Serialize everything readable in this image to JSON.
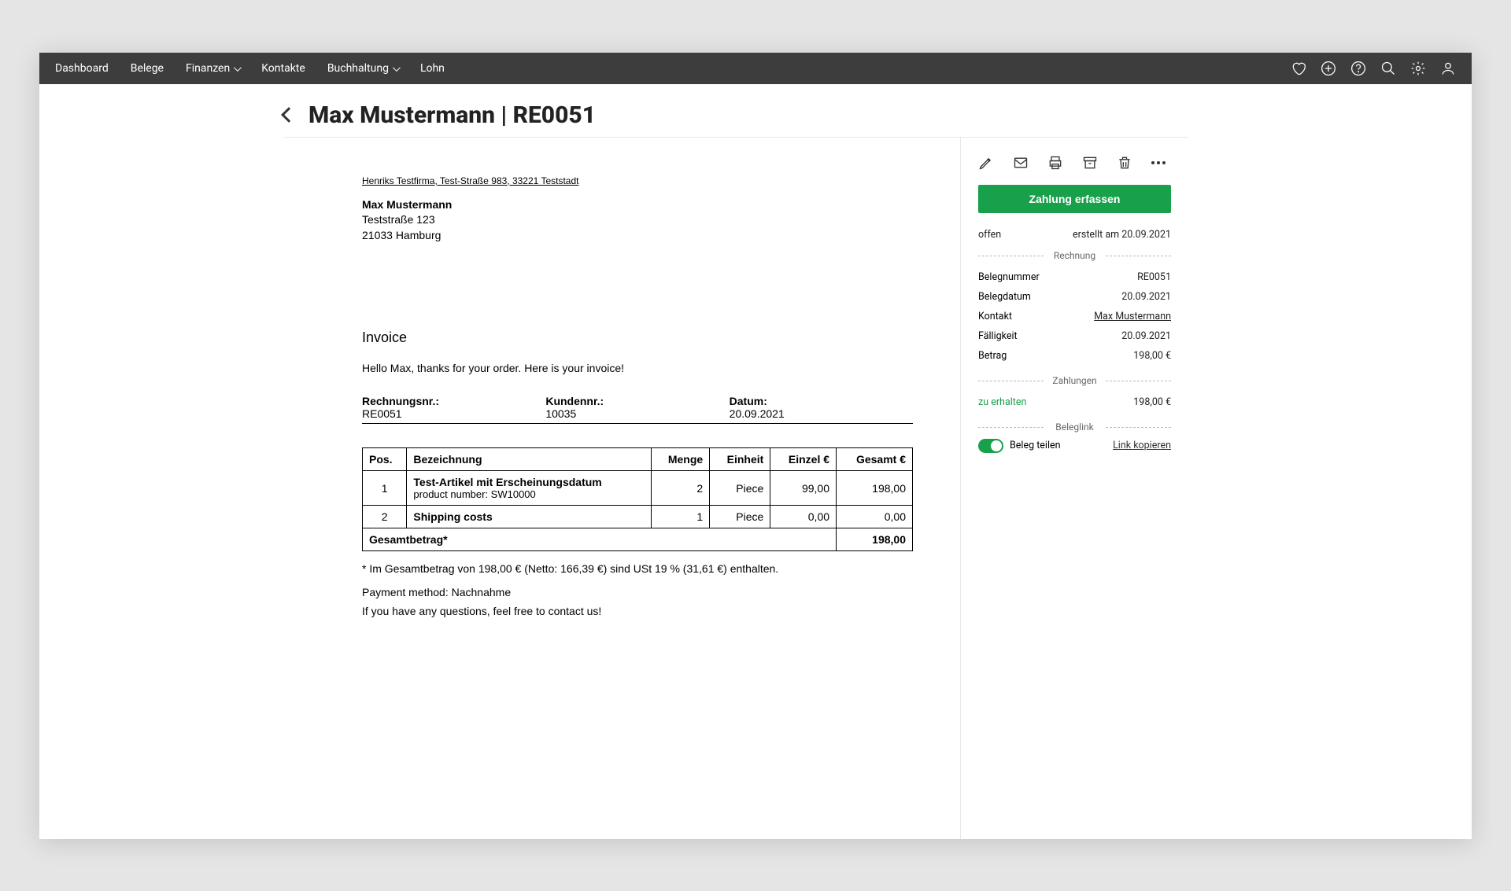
{
  "nav": {
    "items": [
      "Dashboard",
      "Belege",
      "Finanzen",
      "Kontakte",
      "Buchhaltung",
      "Lohn"
    ]
  },
  "header": {
    "title": "Max Mustermann | RE0051"
  },
  "invoice": {
    "sender_line": "Henriks Testfirma, Test-Straße 983, 33221 Teststadt",
    "recipient": {
      "name": "Max Mustermann",
      "street": "Teststraße 123",
      "city": "21033 Hamburg"
    },
    "title": "Invoice",
    "intro": "Hello Max, thanks for your order. Here is your invoice!",
    "meta": {
      "rechnungsnr_label": "Rechnungsnr.:",
      "rechnungsnr": "RE0051",
      "kundennr_label": "Kundennr.:",
      "kundennr": "10035",
      "datum_label": "Datum:",
      "datum": "20.09.2021"
    },
    "table": {
      "headers": {
        "pos": "Pos.",
        "bezeichnung": "Bezeichnung",
        "menge": "Menge",
        "einheit": "Einheit",
        "einzel": "Einzel €",
        "gesamt": "Gesamt €"
      },
      "rows": [
        {
          "pos": "1",
          "name": "Test-Artikel mit Erscheinungsdatum",
          "sub": "product number: SW10000",
          "menge": "2",
          "einheit": "Piece",
          "einzel": "99,00",
          "gesamt": "198,00"
        },
        {
          "pos": "2",
          "name": "Shipping costs",
          "sub": "",
          "menge": "1",
          "einheit": "Piece",
          "einzel": "0,00",
          "gesamt": "0,00"
        }
      ],
      "total_label": "Gesamtbetrag*",
      "total_value": "198,00"
    },
    "tax_note": "* Im Gesamtbetrag von 198,00 € (Netto: 166,39 €) sind USt 19 % (31,61 €) enthalten.",
    "payment_method": "Payment method: Nachnahme",
    "questions": "If you have any questions, feel free to contact us!"
  },
  "sidebar": {
    "cta": "Zahlung erfassen",
    "status": "offen",
    "created": "erstellt am 20.09.2021",
    "sep1": "Rechnung",
    "fields": {
      "belegnummer_label": "Belegnummer",
      "belegnummer": "RE0051",
      "belegdatum_label": "Belegdatum",
      "belegdatum": "20.09.2021",
      "kontakt_label": "Kontakt",
      "kontakt": "Max Mustermann",
      "faelligkeit_label": "Fälligkeit",
      "faelligkeit": "20.09.2021",
      "betrag_label": "Betrag",
      "betrag": "198,00 €"
    },
    "sep2": "Zahlungen",
    "zu_erhalten_label": "zu erhalten",
    "zu_erhalten": "198,00 €",
    "sep3": "Beleglink",
    "beleg_teilen": "Beleg teilen",
    "link_kopieren": "Link kopieren"
  }
}
